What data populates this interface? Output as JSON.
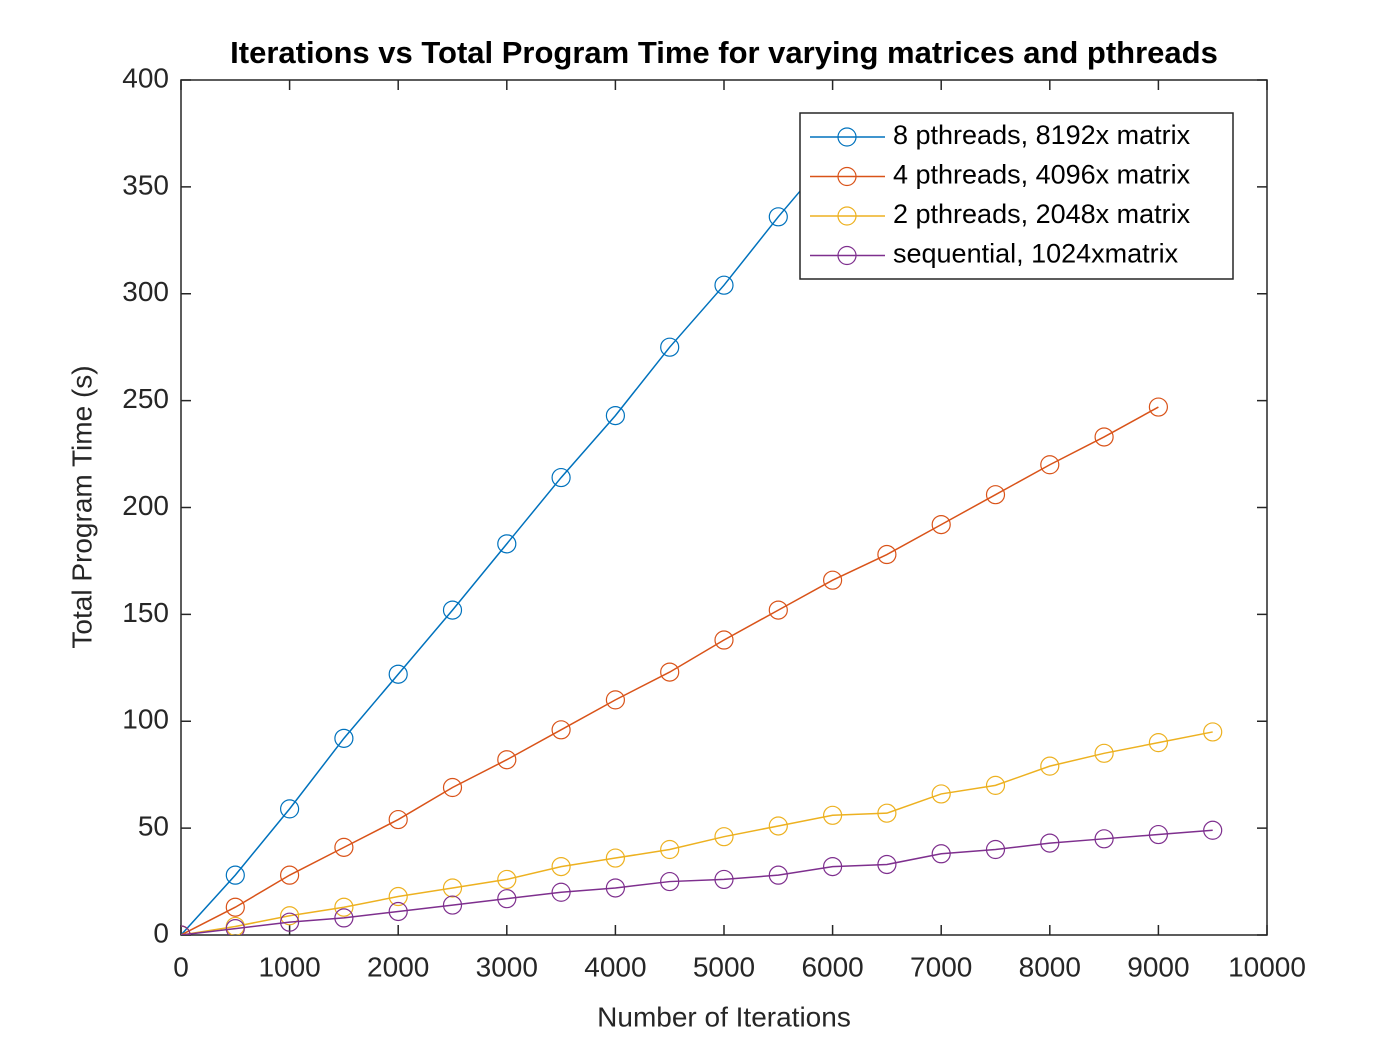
{
  "chart_data": {
    "type": "line",
    "title": "Iterations vs Total Program Time for varying matrices and pthreads",
    "x_label": "Number of Iterations",
    "y_label": "Total Program Time (s)",
    "xlim": [
      0,
      10000
    ],
    "xticks": [
      0,
      1000,
      2000,
      3000,
      4000,
      5000,
      6000,
      7000,
      8000,
      9000,
      10000
    ],
    "ylim": [
      0,
      400
    ],
    "yticks": [
      0,
      50,
      100,
      150,
      200,
      250,
      300,
      350,
      400
    ],
    "legend": "northeast",
    "marker": "circle",
    "series": [
      {
        "name": "8 pthreads, 8192x matrix",
        "color": "#0072BD",
        "x": [
          0,
          500,
          1000,
          1500,
          2000,
          2500,
          3000,
          3500,
          4000,
          4500,
          5000,
          5500,
          6000
        ],
        "values": [
          0,
          28,
          59,
          92,
          122,
          152,
          183,
          214,
          243,
          275,
          304,
          336,
          366
        ]
      },
      {
        "name": "4 pthreads, 4096x matrix",
        "color": "#D95319",
        "x": [
          0,
          500,
          1000,
          1500,
          2000,
          2500,
          3000,
          3500,
          4000,
          4500,
          5000,
          5500,
          6000,
          6500,
          7000,
          7500,
          8000,
          8500,
          9000
        ],
        "values": [
          0,
          13,
          28,
          41,
          54,
          69,
          82,
          96,
          110,
          123,
          138,
          152,
          166,
          178,
          192,
          206,
          220,
          233,
          247
        ]
      },
      {
        "name": "2 pthreads, 2048x matrix",
        "color": "#EDB120",
        "x": [
          0,
          500,
          1000,
          1500,
          2000,
          2500,
          3000,
          3500,
          4000,
          4500,
          5000,
          5500,
          6000,
          6500,
          7000,
          7500,
          8000,
          8500,
          9000,
          9500
        ],
        "values": [
          0,
          4,
          9,
          13,
          18,
          22,
          26,
          32,
          36,
          40,
          46,
          51,
          56,
          57,
          66,
          70,
          79,
          85,
          90,
          95
        ]
      },
      {
        "name": "sequential, 1024xmatrix",
        "color": "#7E2F8E",
        "x": [
          0,
          500,
          1000,
          1500,
          2000,
          2500,
          3000,
          3500,
          4000,
          4500,
          5000,
          5500,
          6000,
          6500,
          7000,
          7500,
          8000,
          8500,
          9000,
          9500
        ],
        "values": [
          0,
          3,
          6,
          8,
          11,
          14,
          17,
          20,
          22,
          25,
          26,
          28,
          32,
          33,
          38,
          40,
          43,
          45,
          47,
          49
        ]
      }
    ]
  }
}
